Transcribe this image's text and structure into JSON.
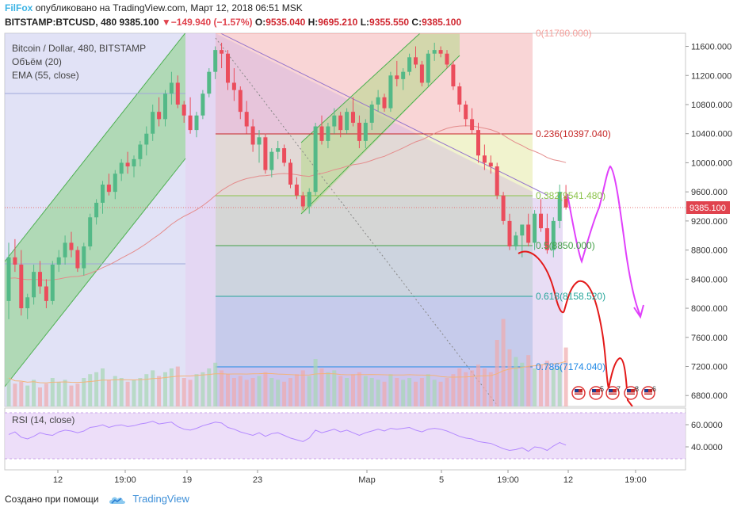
{
  "header": {
    "brand": "FilFox",
    "published": "опубликовано на TradingView.com, Март 12, 2018 06:51 MSK",
    "symbol": "BITSTAMP:BTCUSD, 480",
    "last": "9385.100",
    "arrow": "▼",
    "change": "−149.940 (−1.57%)",
    "o_label": "O:",
    "o": "9535.040",
    "h_label": "H:",
    "h": "9695.210",
    "l_label": "L:",
    "l": "9355.550",
    "c_label": "C:",
    "c": "9385.100"
  },
  "legend": {
    "line1": "Bitcoin / Dollar, 480, BITSTAMP",
    "line2": "Объём (20)",
    "line3": "EMA (55, close)"
  },
  "footer": {
    "made_with": "Создано при помощи",
    "logo_text": "TradingView"
  },
  "colors": {
    "up": "#53b987",
    "down": "#eb4d5c",
    "ema": "#e48c8c",
    "fib_0": "#f4a09c",
    "fib_236": "#c62828",
    "fib_382": "#8bc34a",
    "fib_5": "#43a047",
    "fib_618": "#26a69a",
    "fib_786": "#1e88e5",
    "forecast_red": "#e31a1a",
    "forecast_magenta": "#e040fb",
    "rsi": "#b388ff",
    "price_badge": "#e0434e"
  },
  "chart_data": {
    "type": "candlestick",
    "title": "Bitcoin / Dollar, 480, BITSTAMP",
    "price_axis": {
      "ticks": [
        11600,
        11200,
        10800,
        10400,
        10000,
        9600,
        9200,
        8800,
        8400,
        8000,
        7600,
        7200,
        6800
      ],
      "tick_labels": [
        "11600.000",
        "11200.000",
        "10800.000",
        "10400.000",
        "10000.000",
        "9600.000",
        "9200.000",
        "8800.000",
        "8400.000",
        "8000.000",
        "7600.000",
        "7200.000",
        "6800.000"
      ],
      "ylim": [
        6650,
        11780
      ],
      "last_price_label": "9385.100"
    },
    "time_axis": {
      "labels": [
        "12",
        "19:00",
        "19",
        "23",
        "Мар",
        "5",
        "19:00",
        "12",
        "19:00"
      ]
    },
    "fibonacci": [
      {
        "level": "0",
        "price": "(11780.000)"
      },
      {
        "level": "0.236",
        "price": "(10397.040)"
      },
      {
        "level": "0.382",
        "price": "(9541.480)"
      },
      {
        "level": "0.5",
        "price": "(8850.000)"
      },
      {
        "level": "0.618",
        "price": "(8158.520)"
      },
      {
        "level": "0.786",
        "price": "(7174.040)"
      }
    ],
    "ohlc": [
      [
        8100,
        8900,
        7850,
        8700
      ],
      [
        8700,
        8950,
        8500,
        8600
      ],
      [
        8600,
        8800,
        7900,
        8000
      ],
      [
        8000,
        8200,
        7850,
        8150
      ],
      [
        8150,
        8600,
        8050,
        8500
      ],
      [
        8500,
        8650,
        8200,
        8300
      ],
      [
        8300,
        8400,
        8000,
        8100
      ],
      [
        8100,
        8650,
        8050,
        8600
      ],
      [
        8600,
        8800,
        8500,
        8700
      ],
      [
        8700,
        9000,
        8600,
        8900
      ],
      [
        8900,
        9050,
        8700,
        8800
      ],
      [
        8800,
        8850,
        8500,
        8550
      ],
      [
        8550,
        8900,
        8450,
        8850
      ],
      [
        8850,
        9300,
        8800,
        9250
      ],
      [
        9250,
        9500,
        9150,
        9450
      ],
      [
        9450,
        9750,
        9300,
        9700
      ],
      [
        9700,
        9850,
        9550,
        9600
      ],
      [
        9600,
        9900,
        9500,
        9850
      ],
      [
        9850,
        10050,
        9750,
        10000
      ],
      [
        10000,
        10150,
        9850,
        9950
      ],
      [
        9950,
        10100,
        9800,
        10050
      ],
      [
        10050,
        10300,
        9950,
        10250
      ],
      [
        10250,
        10500,
        10100,
        10400
      ],
      [
        10400,
        10800,
        10300,
        10700
      ],
      [
        10700,
        10900,
        10500,
        10600
      ],
      [
        10600,
        11000,
        10500,
        10950
      ],
      [
        10950,
        11250,
        10800,
        11100
      ],
      [
        11100,
        11200,
        10750,
        10800
      ],
      [
        10800,
        10850,
        10550,
        10650
      ],
      [
        10650,
        10900,
        10400,
        10450
      ],
      [
        10450,
        10700,
        10350,
        10650
      ],
      [
        10650,
        11000,
        10600,
        10950
      ],
      [
        10950,
        11300,
        10900,
        11250
      ],
      [
        11250,
        11600,
        11150,
        11550
      ],
      [
        11550,
        11650,
        11300,
        11500
      ],
      [
        11500,
        11550,
        11000,
        11100
      ],
      [
        11100,
        11300,
        10850,
        11000
      ],
      [
        11000,
        11050,
        10600,
        10700
      ],
      [
        10700,
        10850,
        10400,
        10500
      ],
      [
        10500,
        10600,
        10150,
        10250
      ],
      [
        10250,
        10450,
        10000,
        10350
      ],
      [
        10350,
        10400,
        9850,
        9900
      ],
      [
        9900,
        10200,
        9800,
        10150
      ],
      [
        10150,
        10300,
        10050,
        10200
      ],
      [
        10200,
        10250,
        9950,
        10000
      ],
      [
        10000,
        10050,
        9650,
        9700
      ],
      [
        9700,
        9800,
        9500,
        9550
      ],
      [
        9550,
        9600,
        9350,
        9400
      ],
      [
        9400,
        9650,
        9300,
        9600
      ],
      [
        9600,
        10550,
        9550,
        10500
      ],
      [
        10500,
        10650,
        10250,
        10300
      ],
      [
        10300,
        10550,
        10200,
        10500
      ],
      [
        10500,
        10750,
        10400,
        10650
      ],
      [
        10650,
        10700,
        10350,
        10450
      ],
      [
        10450,
        10750,
        10400,
        10700
      ],
      [
        10700,
        10900,
        10500,
        10550
      ],
      [
        10550,
        10650,
        10200,
        10300
      ],
      [
        10300,
        10600,
        10200,
        10550
      ],
      [
        10550,
        10850,
        10450,
        10800
      ],
      [
        10800,
        11000,
        10700,
        10900
      ],
      [
        10900,
        10950,
        10700,
        10750
      ],
      [
        10750,
        11250,
        10700,
        11200
      ],
      [
        11200,
        11400,
        11050,
        11150
      ],
      [
        11150,
        11300,
        11000,
        11250
      ],
      [
        11250,
        11500,
        11200,
        11450
      ],
      [
        11450,
        11600,
        11300,
        11350
      ],
      [
        11350,
        11400,
        11050,
        11100
      ],
      [
        11100,
        11550,
        11050,
        11500
      ],
      [
        11500,
        11650,
        11400,
        11550
      ],
      [
        11550,
        11600,
        11450,
        11500
      ],
      [
        11500,
        11550,
        11300,
        11350
      ],
      [
        11350,
        11400,
        11000,
        11050
      ],
      [
        11050,
        11100,
        10700,
        10800
      ],
      [
        10800,
        10850,
        10500,
        10600
      ],
      [
        10600,
        10750,
        10400,
        10450
      ],
      [
        10450,
        10550,
        10000,
        10100
      ],
      [
        10100,
        10250,
        9900,
        10000
      ],
      [
        10000,
        10100,
        9850,
        9950
      ],
      [
        9950,
        10000,
        9500,
        9550
      ],
      [
        9550,
        9600,
        9150,
        9200
      ],
      [
        9200,
        9300,
        8800,
        8850
      ],
      [
        8850,
        9050,
        8800,
        9000
      ],
      [
        9000,
        9150,
        8700,
        9150
      ],
      [
        9150,
        9300,
        8850,
        8900
      ],
      [
        8900,
        9350,
        8800,
        9300
      ],
      [
        9300,
        9500,
        9050,
        9100
      ],
      [
        9100,
        9300,
        8750,
        8800
      ],
      [
        8800,
        9250,
        8700,
        9200
      ],
      [
        9200,
        9700,
        9100,
        9600
      ],
      [
        9535.04,
        9695.21,
        9355.55,
        9385.1
      ]
    ],
    "rsi": {
      "label": "RSI (14, close)",
      "ticks": [
        60,
        40
      ],
      "tick_labels": [
        "60.0000",
        "40.0000"
      ],
      "band": [
        30,
        70
      ],
      "values": [
        55,
        58,
        52,
        50,
        53,
        57,
        55,
        54,
        58,
        60,
        59,
        57,
        59,
        63,
        64,
        66,
        63,
        65,
        66,
        64,
        65,
        67,
        68,
        70,
        67,
        68,
        69,
        64,
        61,
        60,
        62,
        65,
        67,
        69,
        68,
        63,
        61,
        58,
        56,
        54,
        57,
        53,
        56,
        57,
        54,
        51,
        49,
        47,
        51,
        60,
        57,
        59,
        61,
        58,
        60,
        57,
        54,
        57,
        59,
        61,
        59,
        62,
        61,
        62,
        63,
        60,
        58,
        61,
        62,
        61,
        59,
        56,
        53,
        51,
        50,
        47,
        46,
        45,
        42,
        39,
        37,
        38,
        40,
        36,
        41,
        40,
        37,
        42,
        46,
        43
      ]
    },
    "volume": [
      30,
      24,
      26,
      22,
      28,
      20,
      24,
      30,
      26,
      28,
      22,
      24,
      30,
      34,
      36,
      40,
      28,
      32,
      30,
      26,
      28,
      30,
      34,
      38,
      32,
      36,
      40,
      42,
      30,
      28,
      34,
      36,
      40,
      46,
      38,
      34,
      30,
      32,
      28,
      30,
      32,
      36,
      30,
      28,
      26,
      30,
      34,
      38,
      32,
      50,
      40,
      36,
      38,
      32,
      30,
      34,
      36,
      32,
      30,
      28,
      26,
      34,
      30,
      28,
      30,
      26,
      30,
      34,
      28,
      26,
      30,
      34,
      40,
      36,
      38,
      44,
      40,
      36,
      70,
      92,
      60,
      52,
      46,
      54,
      40,
      44,
      48,
      40,
      42,
      62
    ]
  }
}
